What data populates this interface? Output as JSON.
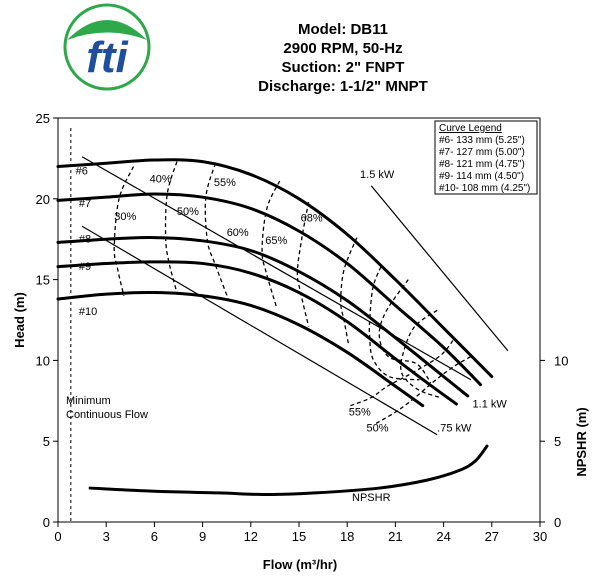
{
  "chart_data": {
    "type": "line",
    "title_lines": [
      "Model: DB11",
      "2900 RPM, 50-Hz",
      "Suction: 2\" FNPT",
      "Discharge: 1-1/2\" MNPT"
    ],
    "logo": {
      "text": "fti",
      "colors": {
        "blue": "#1f4e9c",
        "green": "#2ea84a"
      }
    },
    "xlabel": "Flow (m³/hr)",
    "ylabel": "Head (m)",
    "ylabel_right": "NPSHR (m)",
    "xlim": [
      0,
      30
    ],
    "ylim": [
      0,
      25
    ],
    "x_ticks": [
      "0",
      "3",
      "6",
      "9",
      "12",
      "15",
      "18",
      "21",
      "24",
      "27",
      "30"
    ],
    "y_ticks": [
      "0",
      "5",
      "10",
      "15",
      "20",
      "25"
    ],
    "y_ticks_right": [
      "0",
      "5",
      "10"
    ],
    "legend": {
      "title": "Curve Legend",
      "entries": [
        "#6- 133 mm (5.25\")",
        "#7- 127 mm (5.00\")",
        "#8- 121 mm (4.75\")",
        "#9- 114 mm (4.50\")",
        "#10- 108 mm (4.25\")"
      ]
    },
    "min_flow": {
      "label_lines": [
        "Minimum",
        "Continuous Flow"
      ],
      "x": 0.8
    },
    "series": [
      {
        "name": "#6",
        "x": [
          0,
          3,
          6,
          9,
          12,
          15,
          18,
          21,
          24,
          26.5,
          27
        ],
        "y": [
          22,
          22.2,
          22.4,
          22.3,
          21.5,
          20,
          17.8,
          15,
          12,
          9.5,
          9
        ]
      },
      {
        "name": "#7",
        "x": [
          0,
          3,
          6,
          9,
          12,
          15,
          18,
          21,
          24,
          26.3
        ],
        "y": [
          19.9,
          20.1,
          20.3,
          20.1,
          19.4,
          18,
          16,
          13.4,
          10.8,
          8.5
        ]
      },
      {
        "name": "#8",
        "x": [
          0,
          3,
          6,
          9,
          12,
          15,
          18,
          21,
          24,
          25.5
        ],
        "y": [
          17.3,
          17.5,
          17.6,
          17.4,
          16.8,
          15.5,
          13.7,
          11.4,
          9,
          7.8
        ]
      },
      {
        "name": "#9",
        "x": [
          0,
          3,
          6,
          9,
          12,
          15,
          18,
          21,
          23,
          24.8
        ],
        "y": [
          15.8,
          16,
          16.1,
          16,
          15.4,
          14.2,
          12.4,
          10.1,
          8.6,
          7.3
        ]
      },
      {
        "name": "#10",
        "x": [
          0,
          3,
          6,
          9,
          12,
          15,
          18,
          21,
          22.7
        ],
        "y": [
          13.8,
          14.1,
          14.2,
          14,
          13.4,
          12.2,
          10.5,
          8.4,
          7.2
        ]
      },
      {
        "name": "NPSHR",
        "x": [
          2,
          6,
          10,
          13,
          16,
          20,
          23,
          25,
          26,
          26.7
        ],
        "y": [
          2.1,
          1.9,
          1.8,
          1.7,
          1.8,
          2.1,
          2.6,
          3.2,
          3.8,
          4.7
        ]
      }
    ],
    "efficiency_curves": [
      {
        "label": "30%",
        "x": [
          4.7,
          3.8,
          3.5,
          3.7,
          4.1
        ],
        "y": [
          22.0,
          20.0,
          17.0,
          15.7,
          14.0
        ]
      },
      {
        "label": "40%",
        "x": [
          7.4,
          6.8,
          6.7,
          6.9,
          7.4
        ],
        "y": [
          22.3,
          20.3,
          17.6,
          16.1,
          14.2
        ]
      },
      {
        "label": "50%",
        "x": [
          9.8,
          9.2,
          9.3,
          9.8,
          10.6
        ],
        "y": [
          22.2,
          20.1,
          17.4,
          15.9,
          13.8
        ]
      },
      {
        "label": "55%",
        "x": [
          13.8,
          13.0,
          12.7,
          13.0,
          13.6
        ],
        "y": [
          21.1,
          19.4,
          16.8,
          15.3,
          13.3
        ]
      },
      {
        "label": "60%",
        "x": [
          15.6,
          15.2,
          14.9,
          15.1,
          15.6
        ],
        "y": [
          19.8,
          17.7,
          15.5,
          14.2,
          12.1
        ]
      },
      {
        "label": "65%",
        "x": [
          18.6,
          17.8,
          17.6,
          17.8,
          18.1
        ],
        "y": [
          17.6,
          15.6,
          13.6,
          12.5,
          10.9
        ]
      },
      {
        "label": "68%",
        "x": [
          20.1,
          19.6,
          19.4,
          19.4,
          19.6,
          20.6,
          22.5
        ],
        "y": [
          15.8,
          14.5,
          12.5,
          11.5,
          10.1,
          9.0,
          8.8
        ]
      },
      {
        "label": "65%",
        "x": [
          21.8,
          20.4,
          20.0,
          20.6,
          22.3,
          23.2
        ],
        "y": [
          15.0,
          13.0,
          11.5,
          10.2,
          9.8,
          8.6
        ]
      },
      {
        "label": "60%",
        "x": [
          23.6,
          22.2,
          21.5,
          21.4,
          22.4,
          23.8
        ],
        "y": [
          13.1,
          12.1,
          10.5,
          9.2,
          8.2,
          7.7
        ]
      },
      {
        "label": "55%",
        "x": [
          18.2,
          19.5,
          20.5,
          22.0,
          23.8,
          24.7
        ],
        "y": [
          7.2,
          7.7,
          8.4,
          9.2,
          10.3,
          11.4
        ]
      },
      {
        "label": "50%",
        "x": [
          19.8,
          21.0,
          22.1,
          23.4,
          24.6,
          25.8
        ],
        "y": [
          6.1,
          6.8,
          7.6,
          8.7,
          9.6,
          10.3
        ]
      }
    ],
    "eff_labels": [
      {
        "text": "30%",
        "x": 3.5,
        "y": 18.7
      },
      {
        "text": "40%",
        "x": 5.7,
        "y": 21.0
      },
      {
        "text": "50%",
        "x": 7.4,
        "y": 19.0
      },
      {
        "text": "55%",
        "x": 9.7,
        "y": 20.8
      },
      {
        "text": "60%",
        "x": 10.5,
        "y": 17.7
      },
      {
        "text": "65%",
        "x": 12.9,
        "y": 17.2
      },
      {
        "text": "68%",
        "x": 15.1,
        "y": 18.6
      },
      {
        "text": "55%",
        "x": 18.1,
        "y": 6.6
      },
      {
        "text": "50%",
        "x": 19.2,
        "y": 5.6
      }
    ],
    "power_lines": [
      {
        "label": "1.5 kW",
        "x": [
          19.5,
          28.0
        ],
        "y": [
          20.8,
          10.6
        ]
      },
      {
        "label": "1.1 kW",
        "x": [
          1.5,
          25.7
        ],
        "y": [
          22.6,
          8.8
        ]
      },
      {
        "label": ".75 kW",
        "x": [
          1.5,
          23.6
        ],
        "y": [
          18.3,
          5.4
        ]
      }
    ],
    "power_labels": [
      {
        "text": "1.5 kW",
        "x": 18.8,
        "y": 21.3
      },
      {
        "text": "1.1 kW",
        "x": 25.8,
        "y": 7.1
      },
      {
        "text": ".75 kW",
        "x": 23.6,
        "y": 5.6
      }
    ],
    "curve_labels": [
      {
        "text": "#6",
        "x": 1.1,
        "y": 21.5
      },
      {
        "text": "#7",
        "x": 1.3,
        "y": 19.5
      },
      {
        "text": "#8",
        "x": 1.3,
        "y": 17.3
      },
      {
        "text": "#9",
        "x": 1.3,
        "y": 15.6
      },
      {
        "text": "#10",
        "x": 1.3,
        "y": 12.8
      }
    ],
    "npshr_label": {
      "text": "NPSHR",
      "x": 18.3,
      "y": 1.3
    }
  }
}
